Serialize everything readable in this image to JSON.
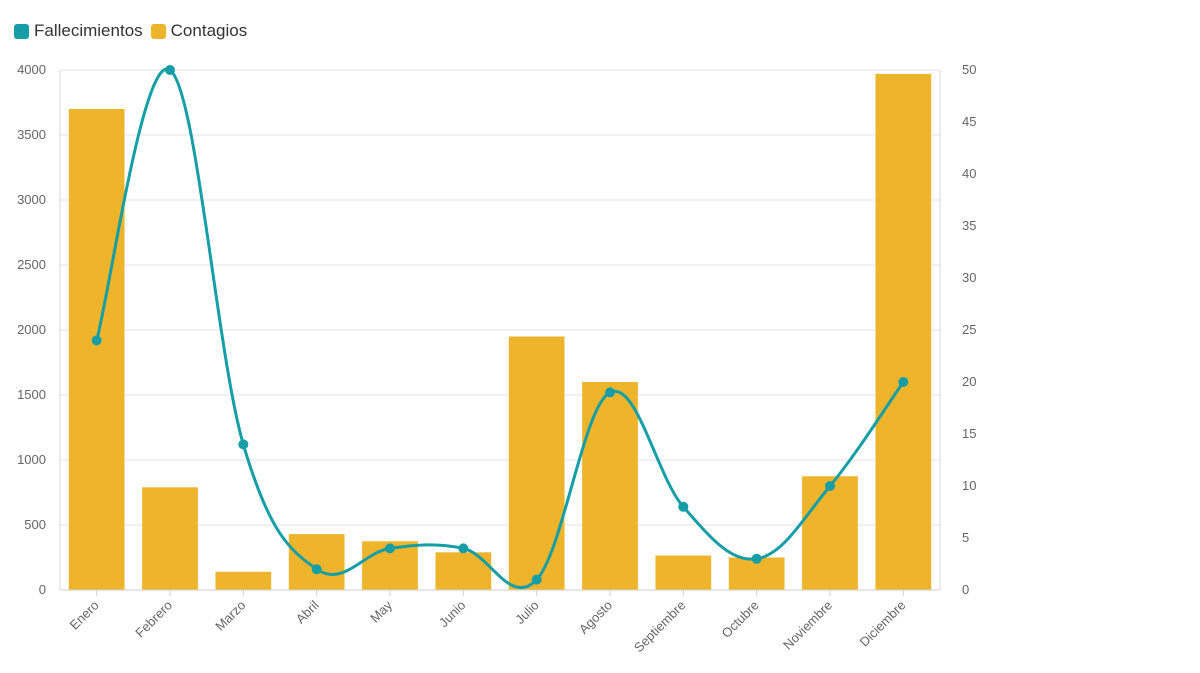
{
  "chart_data": {
    "type": "bar+line",
    "categories": [
      "Enero",
      "Febrero",
      "Marzo",
      "Abril",
      "May",
      "Junio",
      "Julio",
      "Agosto",
      "Septiembre",
      "Octubre",
      "Noviembre",
      "Diciembre"
    ],
    "series": [
      {
        "name": "Fallecimientos",
        "type": "line",
        "axis": "right",
        "color": "#169ea6",
        "values": [
          24,
          50,
          14,
          2,
          4,
          4,
          1,
          19,
          8,
          3,
          10,
          20
        ]
      },
      {
        "name": "Contagios",
        "type": "bar",
        "axis": "left",
        "color": "#eeb52c",
        "values": [
          3700,
          790,
          140,
          430,
          375,
          290,
          1950,
          1600,
          265,
          250,
          875,
          3970
        ]
      }
    ],
    "y_left": {
      "min": 0,
      "max": 4000,
      "ticks": [
        "0",
        "500",
        "1000",
        "1500",
        "2000",
        "2500",
        "3000",
        "3500",
        "4000"
      ]
    },
    "y_right": {
      "min": 0,
      "max": 50,
      "ticks": [
        "0",
        "5",
        "10",
        "15",
        "20",
        "25",
        "30",
        "35",
        "40",
        "45",
        "50"
      ]
    },
    "grid": true,
    "legend_position": "top-left"
  }
}
